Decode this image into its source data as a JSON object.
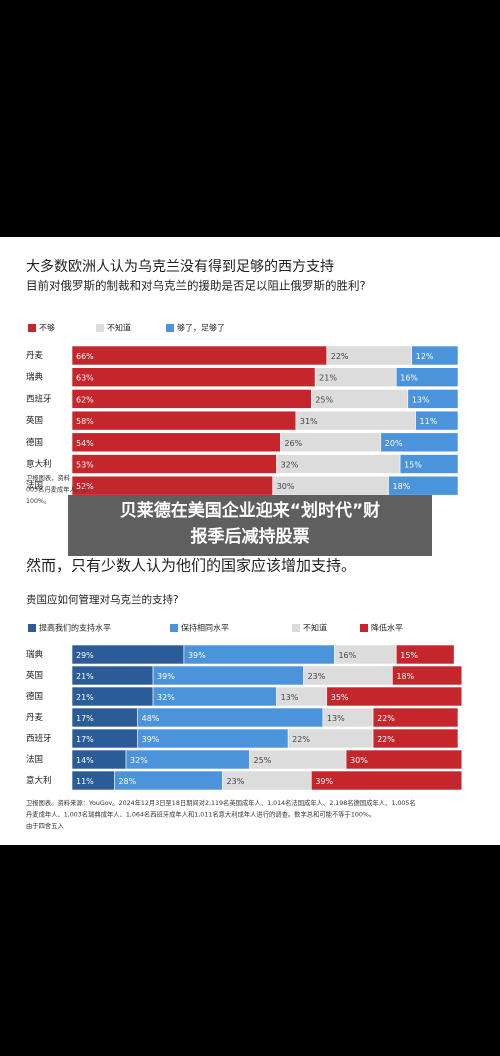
{
  "chart_data": [
    {
      "type": "stacked-bar-horizontal",
      "title": "大多数欧洲人认为乌克兰没有得到足够的西方支持",
      "subtitle": "目前对俄罗斯的制裁和对乌克兰的援助是否足以阻止俄罗斯的胜利?",
      "categories": [
        "丹麦",
        "瑞典",
        "西班牙",
        "英国",
        "德国",
        "意大利",
        "法国"
      ],
      "xlim": [
        0,
        100
      ],
      "series": [
        {
          "name": "不够",
          "color": "#c4262c",
          "values": [
            66,
            63,
            62,
            58,
            54,
            53,
            52
          ],
          "value_labels": [
            "66%",
            "63%",
            "62%",
            "58%",
            "54%",
            "53%",
            "52%"
          ]
        },
        {
          "name": "不知道",
          "color": "#dcdcdc",
          "values": [
            22,
            21,
            25,
            31,
            26,
            32,
            30
          ],
          "value_labels": [
            "22%",
            "21%",
            "25%",
            "31%",
            "26%",
            "32%",
            "30%"
          ]
        },
        {
          "name": "够了，足够了",
          "color": "#4b93da",
          "values": [
            12,
            16,
            13,
            11,
            20,
            15,
            18
          ],
          "value_labels": [
            "12%",
            "16%",
            "13%",
            "11%",
            "20%",
            "15%",
            "18%"
          ]
        }
      ],
      "notes": [
        "卫报图表，资料",
        "005名丹麦成年人、1",
        "100%。"
      ]
    },
    {
      "type": "stacked-bar-horizontal",
      "title": "然而，只有少数人认为他们的国家应该增加支持。",
      "subtitle": "贵国应如何管理对乌克兰的支持?",
      "categories": [
        "瑞典",
        "英国",
        "德国",
        "丹麦",
        "西班牙",
        "法国",
        "意大利"
      ],
      "xlim": [
        0,
        100
      ],
      "series": [
        {
          "name": "提高我们的支持水平",
          "color": "#2b5c98",
          "values": [
            29,
            21,
            21,
            17,
            17,
            14,
            11
          ],
          "value_labels": [
            "29%",
            "21%",
            "21%",
            "17%",
            "17%",
            "14%",
            "11%"
          ]
        },
        {
          "name": "保持相同水平",
          "color": "#4b93da",
          "values": [
            39,
            39,
            32,
            48,
            39,
            32,
            28
          ],
          "value_labels": [
            "39%",
            "39%",
            "32%",
            "48%",
            "39%",
            "32%",
            "28%"
          ]
        },
        {
          "name": "不知道",
          "color": "#dcdcdc",
          "values": [
            16,
            23,
            13,
            13,
            22,
            25,
            23
          ],
          "value_labels": [
            "16%",
            "23%",
            "13%",
            "13%",
            "22%",
            "25%",
            "23%"
          ]
        },
        {
          "name": "降低水平",
          "color": "#c4262c",
          "values": [
            15,
            18,
            35,
            22,
            22,
            30,
            39
          ],
          "value_labels": [
            "15%",
            "18%",
            "35%",
            "22%",
            "22%",
            "30%",
            "39%"
          ]
        }
      ],
      "notes": [
        "卫报图表。资料来源：YouGov。2024年12月3日至18日期间对2,119名英国成年人、1,014名法国成年人、2,198名德国成年人、1,005名",
        "丹麦成年人、1,003名瑞典成年人、1,064名西班牙成年人和1,011名意大利成年人进行的调查。数字总和可能不等于100%。",
        "由于四舍五入"
      ]
    }
  ],
  "overlay": {
    "caption": [
      "贝莱德在美国企业迎来“划时代”财",
      "报季后减持股票"
    ]
  }
}
